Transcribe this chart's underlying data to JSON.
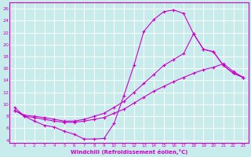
{
  "xlabel": "Windchill (Refroidissement éolien,°C)",
  "bg_color": "#c8ecec",
  "grid_color": "#b8dede",
  "line_color": "#cc00cc",
  "xlim": [
    -0.5,
    23.5
  ],
  "ylim": [
    3.5,
    27
  ],
  "xticks": [
    0,
    1,
    2,
    3,
    4,
    5,
    6,
    7,
    8,
    9,
    10,
    11,
    12,
    13,
    14,
    15,
    16,
    17,
    18,
    19,
    20,
    21,
    22,
    23
  ],
  "yticks": [
    4,
    6,
    8,
    10,
    12,
    14,
    16,
    18,
    20,
    22,
    24,
    26
  ],
  "curve1_x": [
    0,
    1,
    2,
    3,
    4,
    5,
    6,
    7,
    8,
    9,
    10,
    11,
    12,
    13,
    14,
    15,
    16,
    17,
    18,
    19,
    20,
    21,
    22,
    23
  ],
  "curve1_y": [
    9.5,
    8.0,
    7.2,
    6.5,
    6.2,
    5.5,
    5.0,
    4.2,
    4.2,
    4.3,
    6.8,
    11.5,
    16.5,
    22.2,
    24.2,
    25.5,
    25.8,
    25.2,
    21.8,
    19.2,
    18.8,
    16.5,
    15.2,
    14.5
  ],
  "curve2_x": [
    0,
    1,
    2,
    3,
    4,
    5,
    6,
    7,
    8,
    9,
    10,
    11,
    12,
    13,
    14,
    15,
    16,
    17,
    18,
    19,
    20,
    21,
    22,
    23
  ],
  "curve2_y": [
    9.0,
    8.2,
    8.0,
    7.8,
    7.5,
    7.2,
    7.2,
    7.5,
    8.0,
    8.5,
    9.5,
    10.5,
    12.0,
    13.5,
    15.0,
    16.5,
    17.5,
    18.5,
    21.8,
    19.2,
    18.8,
    16.5,
    15.2,
    14.5
  ],
  "curve3_x": [
    0,
    1,
    2,
    3,
    4,
    5,
    6,
    7,
    8,
    9,
    10,
    11,
    12,
    13,
    14,
    15,
    16,
    17,
    18,
    19,
    20,
    21,
    22,
    23
  ],
  "curve3_y": [
    9.0,
    8.0,
    7.8,
    7.5,
    7.2,
    7.0,
    7.0,
    7.2,
    7.5,
    7.8,
    8.5,
    9.2,
    10.2,
    11.2,
    12.2,
    13.0,
    13.8,
    14.5,
    15.2,
    15.8,
    16.2,
    16.8,
    15.5,
    14.5
  ]
}
